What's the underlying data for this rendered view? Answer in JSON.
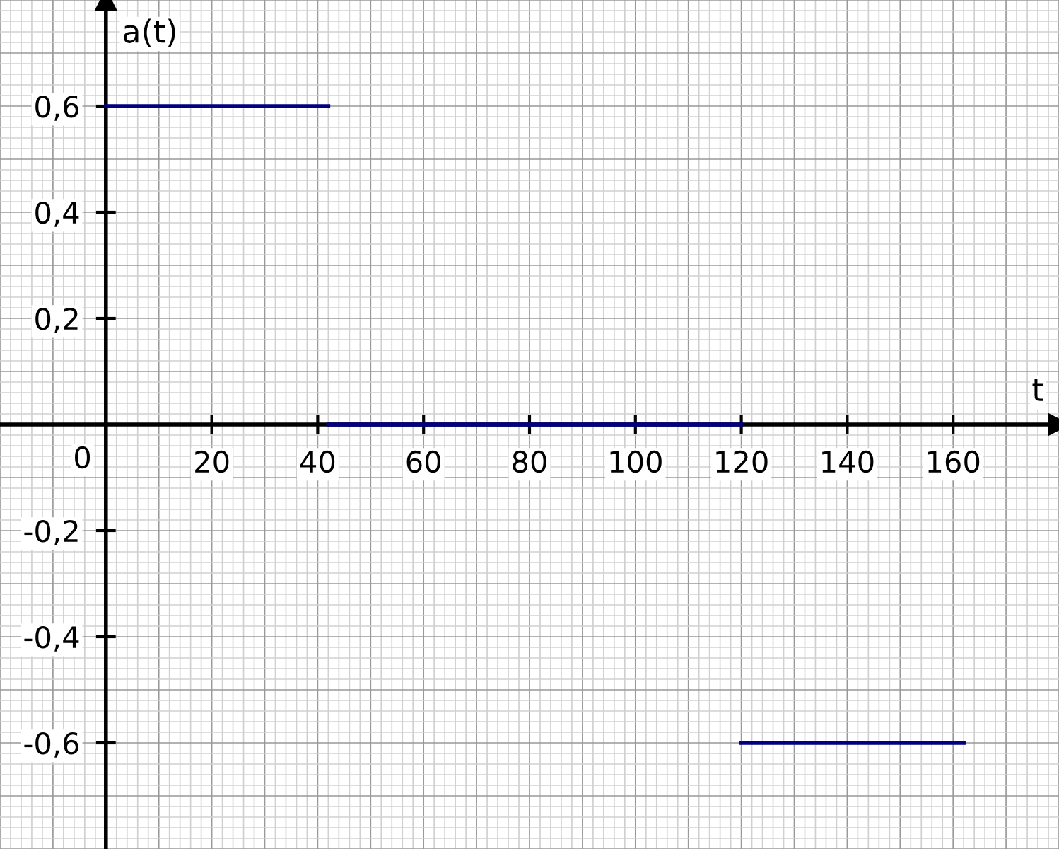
{
  "chart_data": {
    "type": "line",
    "xlabel": "t",
    "ylabel": "a(t)",
    "series": [
      {
        "color": "#000080",
        "x": [
          0,
          42
        ],
        "values": [
          0.6,
          0.6
        ]
      },
      {
        "color": "#000080",
        "x": [
          42,
          120
        ],
        "values": [
          0,
          0
        ]
      },
      {
        "color": "#000080",
        "x": [
          120,
          162
        ],
        "values": [
          -0.6,
          -0.6
        ]
      }
    ],
    "xlim": [
      -20,
      180
    ],
    "ylim": [
      -0.8,
      0.8
    ],
    "annotations": [
      "0"
    ],
    "xticks": [
      20,
      40,
      60,
      80,
      100,
      120,
      140,
      160
    ],
    "yticks": [
      {
        "value": -0.6,
        "label": "-0,6"
      },
      {
        "value": -0.4,
        "label": "-0,4"
      },
      {
        "value": -0.2,
        "label": "-0,2"
      },
      {
        "value": 0.2,
        "label": "0,2"
      },
      {
        "value": 0.4,
        "label": "0,4"
      },
      {
        "value": 0.6,
        "label": "0,6"
      }
    ],
    "grid": true,
    "marker": "none",
    "line_style": "solid"
  }
}
